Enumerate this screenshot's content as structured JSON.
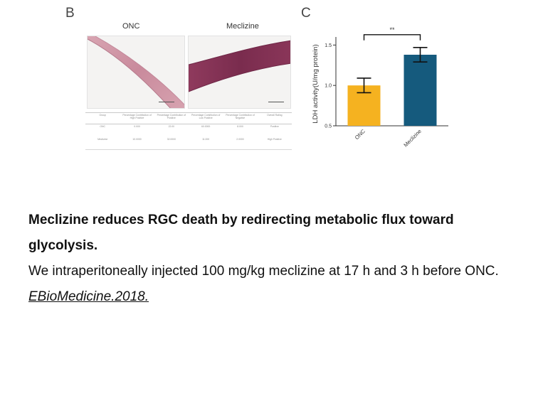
{
  "panels": {
    "b_label": "B",
    "c_label": "C",
    "image_titles": [
      "ONC",
      "Meclizine"
    ]
  },
  "stats_table": {
    "headers": [
      "Group",
      "Percentage Contribution of High Positive",
      "Percentage Contribution of Positive",
      "Percentage Contribution of Low Positive",
      "Percentage Contribution of Negative",
      "Overall Rating"
    ],
    "rows": [
      [
        "ONC",
        "0.000",
        "22.00",
        "60.0000",
        "8.000",
        "Positive"
      ],
      [
        "Meclizine",
        "10.0000",
        "32.0000",
        "11.000",
        "2.0000",
        "High Positive"
      ]
    ]
  },
  "chart_data": {
    "type": "bar",
    "categories": [
      "ONC",
      "Meclizine"
    ],
    "values": [
      1.0,
      1.38
    ],
    "errors": [
      0.09,
      0.09
    ],
    "ylabel": "LDH activity(U/mg protein)",
    "ylim": [
      0.5,
      1.6
    ],
    "yticks": [
      "0.5",
      "1.0",
      "1.5"
    ],
    "ytick_values": [
      0.5,
      1.0,
      1.5
    ],
    "significance": "**",
    "colors": [
      "#f5b220",
      "#155a7d"
    ],
    "grid": false
  },
  "caption": {
    "title": "Meclizine reduces RGC death by redirecting metabolic flux toward glycolysis.",
    "body": "We intraperitoneally injected 100 mg/kg meclizine at 17 h and 3 h before ONC.",
    "citation": "EBioMedicine.2018."
  }
}
